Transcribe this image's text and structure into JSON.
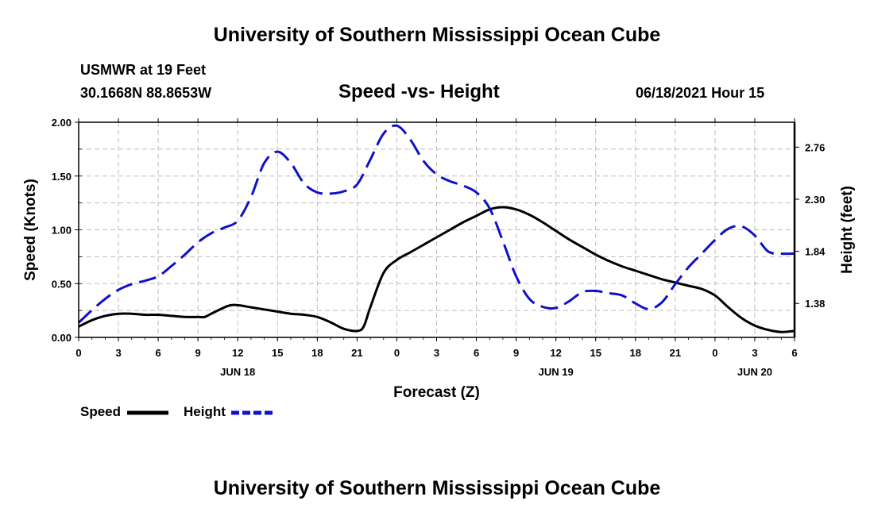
{
  "header": {
    "title": "University of Southern Mississippi Ocean Cube",
    "station": "USMWR at 19 Feet",
    "coords": "30.1668N  88.8653W",
    "subtitle": "Speed -vs- Height",
    "datetime": "06/18/2021 Hour 15"
  },
  "footer": {
    "title": "University of Southern Mississippi Ocean Cube"
  },
  "legend": {
    "speed_label": "Speed",
    "height_label": "Height"
  },
  "colors": {
    "speed": "#000000",
    "height": "#1010c8",
    "grid": "#bbbbbb"
  },
  "chart_data": {
    "type": "line",
    "title": "Speed -vs- Height",
    "xlabel": "Forecast (Z)",
    "ylabel": "Speed (Knots)",
    "y2label": "Height (feet)",
    "x_ticks": [
      "0",
      "3",
      "6",
      "9",
      "12",
      "15",
      "18",
      "21",
      "0",
      "3",
      "6",
      "9",
      "12",
      "15",
      "18",
      "21",
      "0",
      "3",
      "6"
    ],
    "date_labels": [
      {
        "label": "JUN 18",
        "x": 12
      },
      {
        "label": "JUN 19",
        "x": 36
      },
      {
        "label": "JUN 20",
        "x": 51
      }
    ],
    "xlim": [
      0,
      54
    ],
    "ylim": [
      0,
      2.0
    ],
    "y_ticks": [
      "0.00",
      "0.50",
      "1.00",
      "1.50",
      "2.00"
    ],
    "y2lim": [
      1.08,
      2.98
    ],
    "y2_ticks": [
      "1.38",
      "1.84",
      "2.30",
      "2.76"
    ],
    "grid": true,
    "legend_position": "bottom-left",
    "series": [
      {
        "name": "Speed",
        "axis": "left",
        "style": "solid",
        "x": [
          0,
          1,
          2,
          3,
          4,
          5,
          6,
          7,
          8,
          9,
          9.5,
          10,
          11,
          11.5,
          12,
          13,
          14,
          15,
          16,
          17,
          18,
          19,
          20,
          21,
          21.5,
          22,
          23,
          24,
          25,
          26,
          27,
          28,
          29,
          30,
          31,
          32,
          33,
          34,
          35,
          36,
          37,
          38,
          39,
          40,
          41,
          42,
          43,
          44,
          45,
          46,
          47,
          48,
          49,
          50,
          51,
          52,
          53,
          54
        ],
        "values": [
          0.1,
          0.16,
          0.2,
          0.22,
          0.22,
          0.21,
          0.21,
          0.2,
          0.19,
          0.19,
          0.19,
          0.22,
          0.28,
          0.3,
          0.3,
          0.28,
          0.26,
          0.24,
          0.22,
          0.21,
          0.19,
          0.14,
          0.08,
          0.06,
          0.1,
          0.28,
          0.6,
          0.72,
          0.79,
          0.86,
          0.93,
          1.0,
          1.07,
          1.13,
          1.19,
          1.21,
          1.19,
          1.14,
          1.07,
          0.99,
          0.91,
          0.84,
          0.77,
          0.71,
          0.66,
          0.62,
          0.58,
          0.54,
          0.51,
          0.48,
          0.45,
          0.39,
          0.28,
          0.18,
          0.11,
          0.07,
          0.05,
          0.06
        ]
      },
      {
        "name": "Height",
        "axis": "right",
        "style": "dashed",
        "x": [
          0,
          1,
          2,
          3,
          4,
          5,
          6,
          7,
          8,
          9,
          10,
          11,
          12,
          13,
          14,
          15,
          16,
          17,
          18,
          19,
          20,
          21,
          22,
          23,
          24,
          25,
          26,
          27,
          28,
          29,
          30,
          31,
          32,
          33,
          34,
          35,
          36,
          37,
          38,
          39,
          40,
          41,
          42,
          43,
          44,
          45,
          46,
          47,
          48,
          49,
          50,
          51,
          52,
          53,
          54
        ],
        "values": [
          1.21,
          1.32,
          1.42,
          1.5,
          1.55,
          1.58,
          1.62,
          1.71,
          1.81,
          1.92,
          2.0,
          2.05,
          2.11,
          2.32,
          2.62,
          2.72,
          2.62,
          2.44,
          2.36,
          2.35,
          2.37,
          2.43,
          2.65,
          2.88,
          2.95,
          2.83,
          2.64,
          2.52,
          2.46,
          2.42,
          2.36,
          2.22,
          1.93,
          1.62,
          1.42,
          1.35,
          1.34,
          1.4,
          1.48,
          1.49,
          1.47,
          1.45,
          1.38,
          1.33,
          1.39,
          1.55,
          1.7,
          1.82,
          1.94,
          2.04,
          2.06,
          1.98,
          1.84,
          1.82,
          1.82
        ]
      }
    ]
  }
}
